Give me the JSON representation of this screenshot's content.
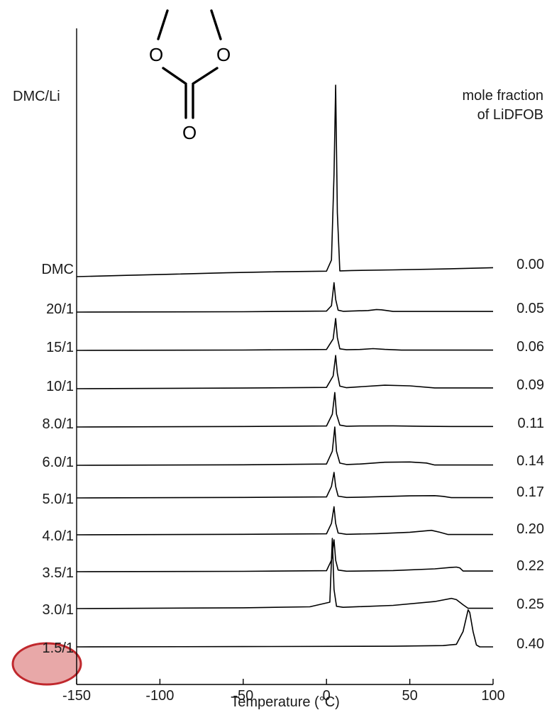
{
  "chart_data": {
    "type": "line",
    "xlabel": "Temperature (°C)",
    "xlim": [
      -150,
      100
    ],
    "x_ticks": [
      -150,
      -100,
      -50,
      0,
      50,
      100
    ],
    "x_tick_labels": [
      "-150",
      "-100",
      "-50",
      "0",
      "50",
      "100"
    ],
    "left_header": "DMC/Li",
    "right_header_line1": "mole fraction",
    "right_header_line2": "of LiDFOB",
    "molecule_atoms": [
      "O",
      "O",
      "O"
    ],
    "highlight_color": "#c0282d",
    "series": [
      {
        "name": "DMC",
        "fraction": "0.00",
        "x": [
          -150,
          -120,
          -90,
          -60,
          -30,
          0,
          3,
          4.5,
          5.5,
          6.5,
          8,
          15,
          40,
          70,
          100
        ],
        "y": [
          0.0,
          0.1,
          0.2,
          0.3,
          0.38,
          0.43,
          1.3,
          8.0,
          15.0,
          5.0,
          0.45,
          0.48,
          0.53,
          0.6,
          0.7
        ]
      },
      {
        "name": "20/1",
        "fraction": "0.05",
        "x": [
          -150,
          -50,
          0,
          3,
          4.5,
          5.5,
          7,
          10,
          25,
          30,
          33,
          40,
          60,
          100
        ],
        "y": [
          0.0,
          0.03,
          0.08,
          0.5,
          2.3,
          1.0,
          0.15,
          0.06,
          0.12,
          0.2,
          0.18,
          0.05,
          0.05,
          0.05
        ]
      },
      {
        "name": "15/1",
        "fraction": "0.06",
        "x": [
          -150,
          -50,
          0,
          4,
          5.5,
          6.5,
          8,
          12,
          20,
          28,
          35,
          45,
          60,
          100
        ],
        "y": [
          0.0,
          0.03,
          0.07,
          0.9,
          2.5,
          1.0,
          0.12,
          0.05,
          0.07,
          0.14,
          0.08,
          0.02,
          0.02,
          0.02
        ]
      },
      {
        "name": "10/1",
        "fraction": "0.09",
        "x": [
          -150,
          -50,
          0,
          4,
          5.5,
          6.5,
          8,
          12,
          20,
          35,
          50,
          65,
          100
        ],
        "y": [
          0.0,
          0.05,
          0.1,
          1.0,
          2.6,
          1.2,
          0.2,
          0.08,
          0.15,
          0.27,
          0.22,
          0.06,
          0.06
        ]
      },
      {
        "name": "8.0/1",
        "fraction": "0.11",
        "x": [
          -150,
          -50,
          0,
          3.5,
          5,
          6,
          8,
          12,
          20,
          40,
          60,
          75,
          100
        ],
        "y": [
          0.0,
          0.04,
          0.08,
          1.0,
          2.7,
          1.0,
          0.15,
          0.06,
          0.08,
          0.09,
          0.05,
          0.04,
          0.04
        ]
      },
      {
        "name": "6.0/1",
        "fraction": "0.14",
        "x": [
          -150,
          -50,
          0,
          3.5,
          5,
          6,
          8,
          12,
          20,
          35,
          50,
          60,
          65,
          100
        ],
        "y": [
          0.0,
          0.04,
          0.1,
          1.1,
          3.0,
          1.1,
          0.17,
          0.06,
          0.1,
          0.24,
          0.26,
          0.18,
          0.02,
          0.02
        ]
      },
      {
        "name": "5.0/1",
        "fraction": "0.17",
        "x": [
          -150,
          -50,
          0,
          3,
          4.5,
          5.5,
          7,
          12,
          25,
          50,
          65,
          70,
          75,
          100
        ],
        "y": [
          0.0,
          0.04,
          0.08,
          0.9,
          2.0,
          0.9,
          0.14,
          0.04,
          0.07,
          0.16,
          0.18,
          0.12,
          0.02,
          0.02
        ]
      },
      {
        "name": "4.0/1",
        "fraction": "0.20",
        "x": [
          -150,
          -50,
          0,
          3,
          4.5,
          5.5,
          7,
          12,
          30,
          50,
          63,
          68,
          73,
          100
        ],
        "y": [
          0.0,
          0.04,
          0.08,
          0.9,
          2.2,
          0.9,
          0.14,
          0.04,
          0.09,
          0.2,
          0.35,
          0.2,
          0.02,
          0.02
        ]
      },
      {
        "name": "3.5/1",
        "fraction": "0.22",
        "x": [
          -150,
          -50,
          0,
          3,
          4.5,
          5.5,
          7,
          12,
          40,
          65,
          75,
          78,
          80,
          82,
          100
        ],
        "y": [
          0.0,
          0.03,
          0.08,
          0.9,
          2.5,
          0.9,
          0.13,
          0.04,
          0.09,
          0.22,
          0.34,
          0.36,
          0.3,
          0.05,
          0.05
        ]
      },
      {
        "name": "3.0/1",
        "fraction": "0.25",
        "x": [
          -150,
          -50,
          -10,
          2,
          3.5,
          4.5,
          6,
          10,
          40,
          65,
          75,
          78,
          82,
          85,
          100
        ],
        "y": [
          0.0,
          0.06,
          0.14,
          0.5,
          5.5,
          1.5,
          0.18,
          0.1,
          0.25,
          0.55,
          0.8,
          0.7,
          0.3,
          0.02,
          0.02
        ]
      },
      {
        "name": "1.5/1",
        "fraction": "0.40",
        "x": [
          -150,
          -50,
          40,
          70,
          78,
          82,
          85,
          86,
          88,
          90,
          92,
          100
        ],
        "y": [
          0.0,
          0.02,
          0.05,
          0.1,
          0.2,
          1.2,
          2.9,
          2.7,
          1.2,
          0.15,
          0.0,
          0.0
        ]
      }
    ]
  }
}
